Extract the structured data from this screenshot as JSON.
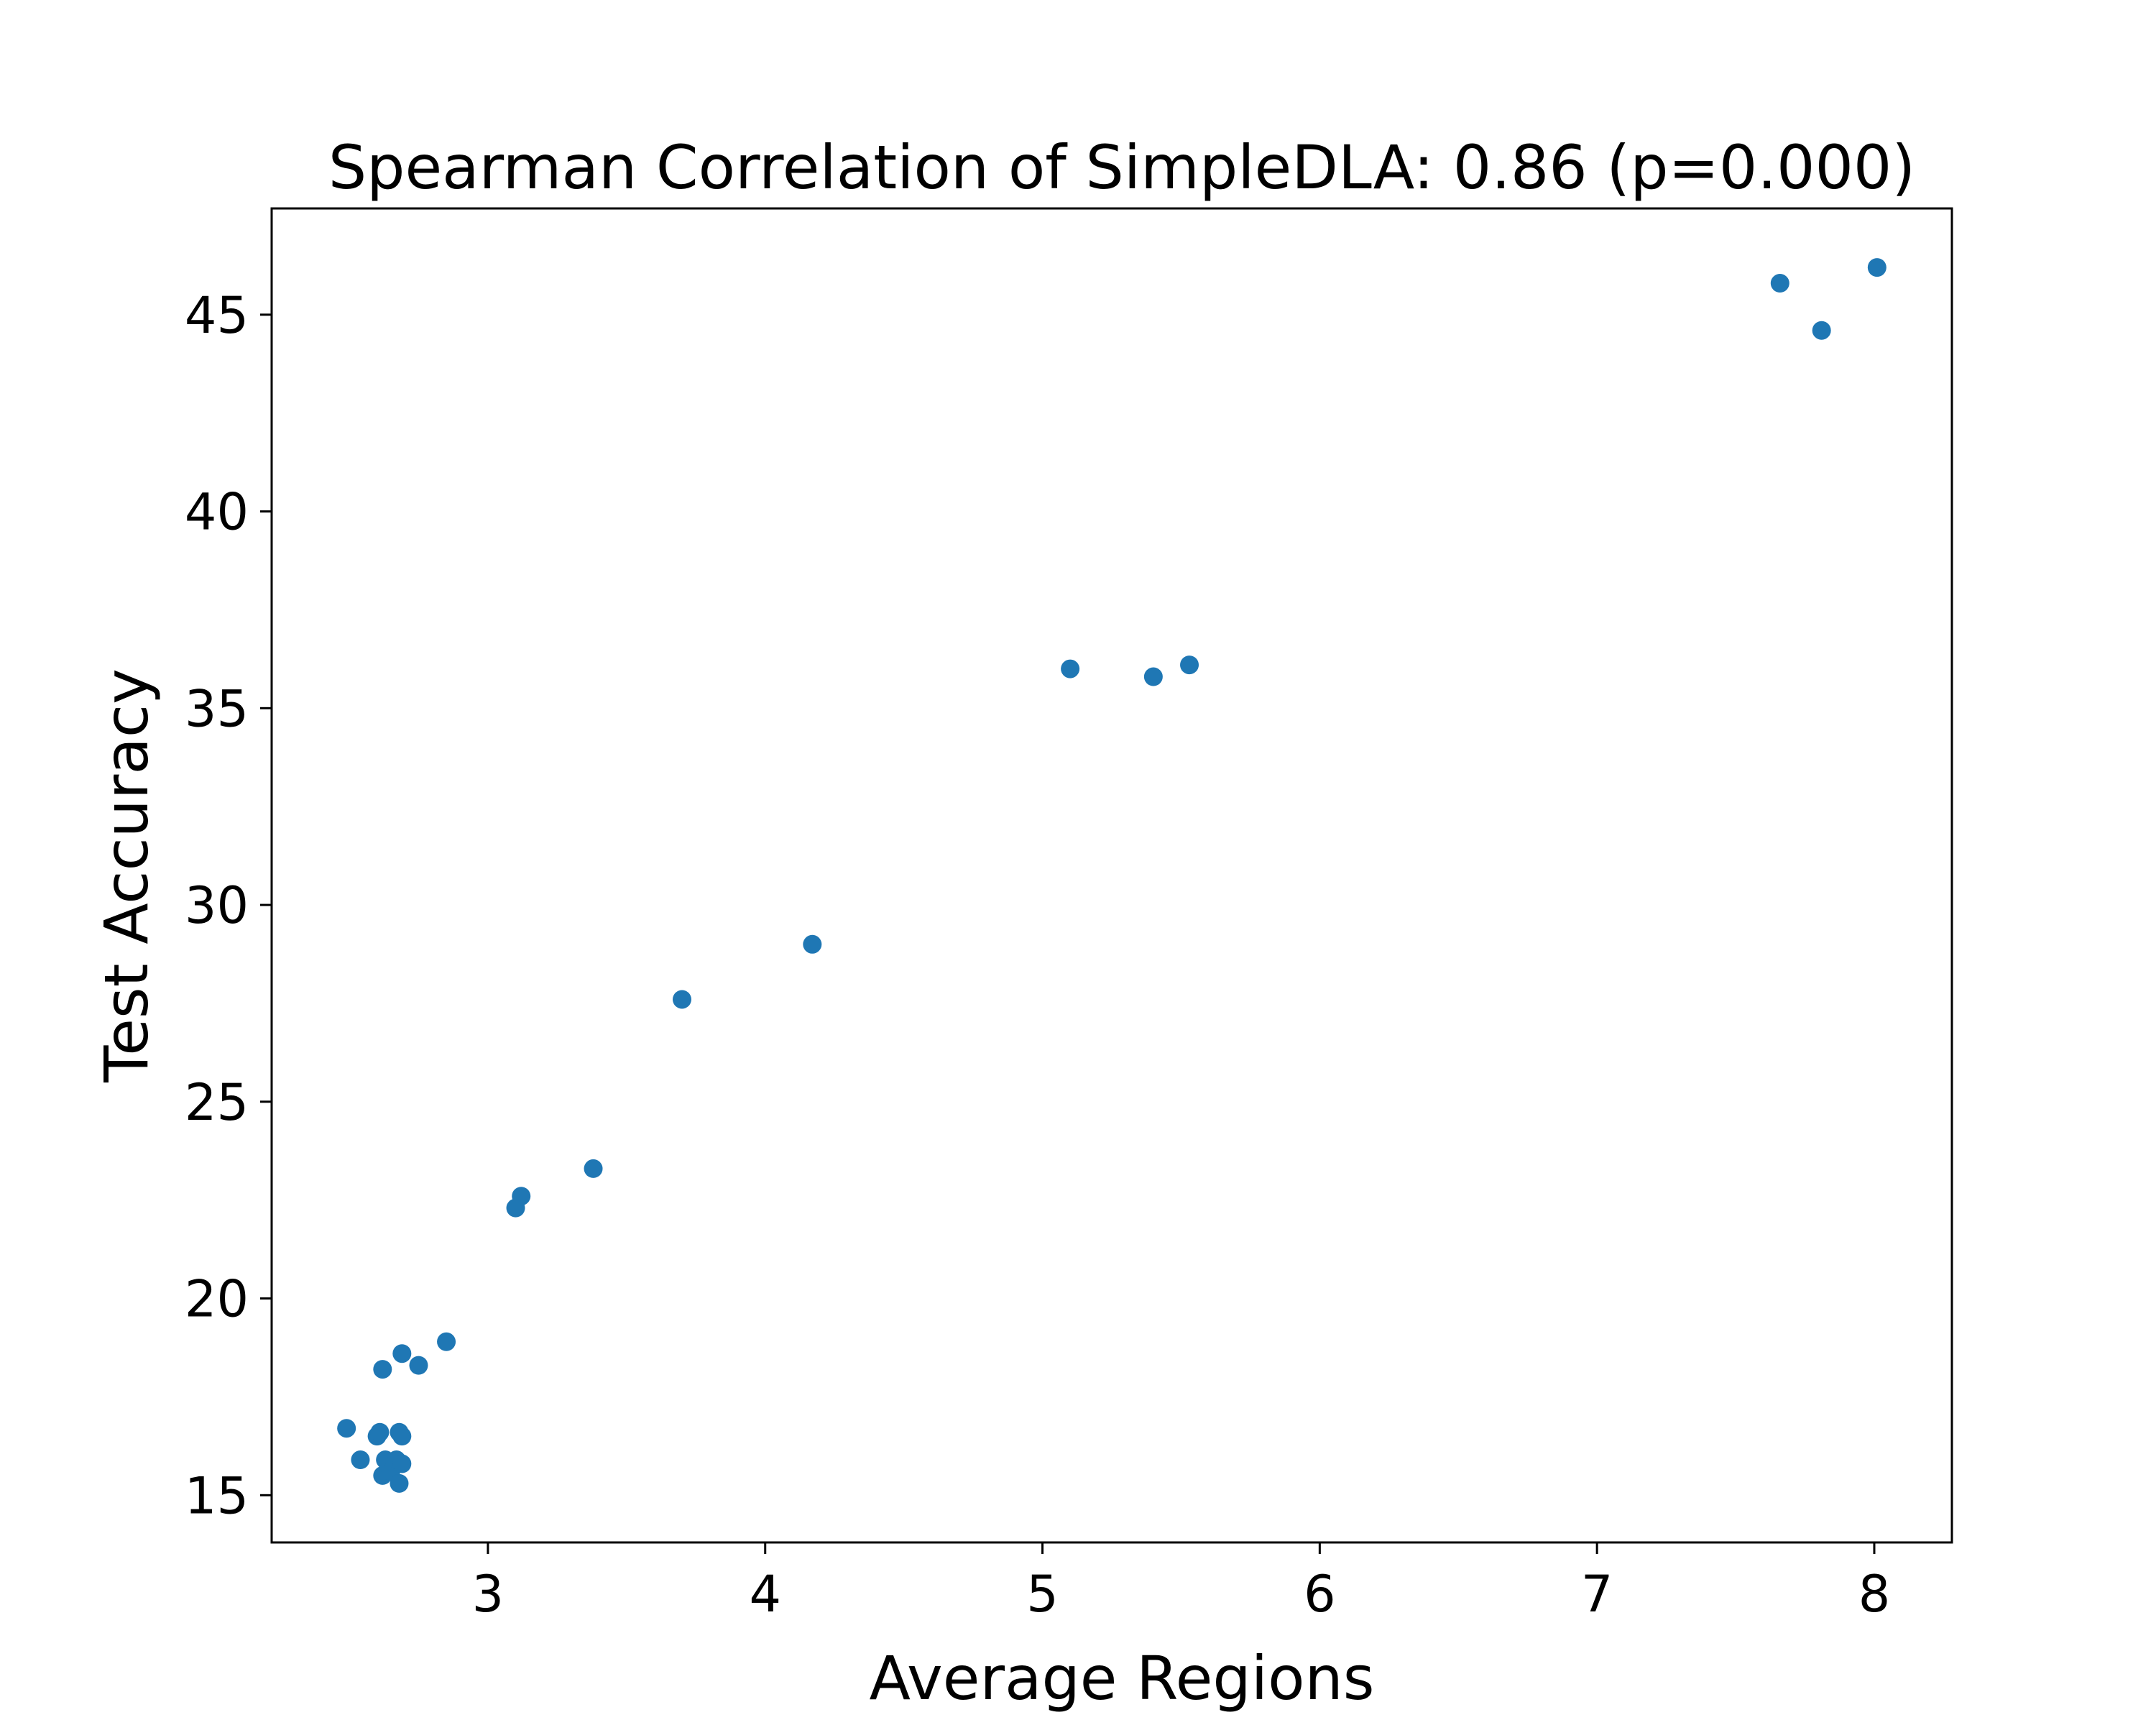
{
  "chart_data": {
    "type": "scatter",
    "title": "Spearman Correlation of SimpleDLA: 0.86 (p=0.000)",
    "xlabel": "Average Regions",
    "ylabel": "Test Accuracy",
    "xlim": [
      2.22,
      8.28
    ],
    "ylim": [
      13.8,
      47.7
    ],
    "xticks": [
      3,
      4,
      5,
      6,
      7,
      8
    ],
    "yticks": [
      15,
      20,
      25,
      30,
      35,
      40,
      45
    ],
    "grid": false,
    "color": "#1f77b4",
    "points": [
      {
        "x": 2.49,
        "y": 16.7
      },
      {
        "x": 2.54,
        "y": 15.9
      },
      {
        "x": 2.6,
        "y": 16.5
      },
      {
        "x": 2.61,
        "y": 16.6
      },
      {
        "x": 2.62,
        "y": 18.2
      },
      {
        "x": 2.62,
        "y": 15.5
      },
      {
        "x": 2.63,
        "y": 15.9
      },
      {
        "x": 2.64,
        "y": 15.8
      },
      {
        "x": 2.65,
        "y": 15.6
      },
      {
        "x": 2.67,
        "y": 15.9
      },
      {
        "x": 2.68,
        "y": 16.6
      },
      {
        "x": 2.68,
        "y": 15.3
      },
      {
        "x": 2.69,
        "y": 16.5
      },
      {
        "x": 2.69,
        "y": 15.8
      },
      {
        "x": 2.69,
        "y": 18.6
      },
      {
        "x": 2.75,
        "y": 18.3
      },
      {
        "x": 2.85,
        "y": 18.9
      },
      {
        "x": 3.1,
        "y": 22.3
      },
      {
        "x": 3.12,
        "y": 22.6
      },
      {
        "x": 3.38,
        "y": 23.3
      },
      {
        "x": 3.7,
        "y": 27.6
      },
      {
        "x": 4.17,
        "y": 29.0
      },
      {
        "x": 5.1,
        "y": 36.0
      },
      {
        "x": 5.4,
        "y": 35.8
      },
      {
        "x": 5.53,
        "y": 36.1
      },
      {
        "x": 7.66,
        "y": 45.8
      },
      {
        "x": 7.81,
        "y": 44.6
      },
      {
        "x": 8.01,
        "y": 46.2
      }
    ]
  }
}
